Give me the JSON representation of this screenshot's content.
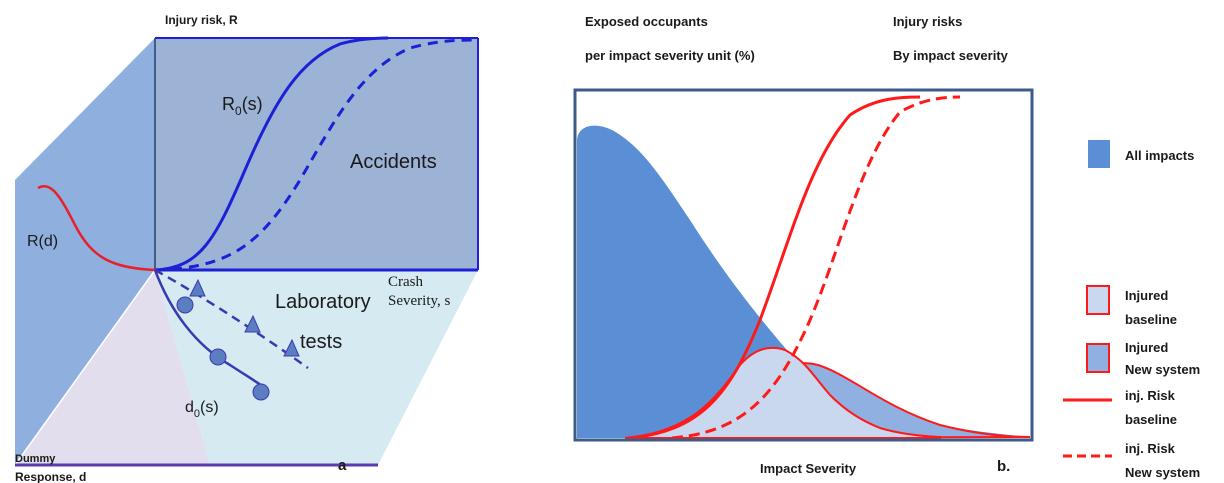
{
  "panel_a": {
    "y_axis_label": "Injury risk, R",
    "response_label_line1": "Dummy",
    "response_label_line2": "Response, d",
    "x_axis_label_line1": "Crash",
    "x_axis_label_line2": "Severity, s",
    "risk_curve_label": "R",
    "risk_curve_sub": "0",
    "risk_curve_arg": "(s)",
    "accidents_label": "Accidents",
    "rd_label": "R(d)",
    "lab_tests_line1": "Laboratory",
    "lab_tests_line2": "tests",
    "d_curve_label": "d",
    "d_curve_sub": "0",
    "d_curve_arg": "(s)",
    "panel_letter": "a",
    "colors": {
      "back_wall": "#9cb3d6",
      "left_wall": "#8fb0de",
      "floor_left": "#e2deed",
      "floor_right": "#d6eaf1",
      "curve_red": "#e8202a",
      "curve_blue": "#1f1fd6",
      "test_blue": "#3a3ab0",
      "markers": "#5b7ec2"
    }
  },
  "panel_b": {
    "left_header_line1": "Exposed occupants",
    "left_header_line2": "per impact severity unit (%)",
    "right_header_line1": "Injury risks",
    "right_header_line2": "By impact severity",
    "x_axis_label": "Impact Severity",
    "panel_letter": "b.",
    "legend": [
      {
        "line1": "All impacts",
        "line2": ""
      },
      {
        "line1": "Injured",
        "line2": "baseline"
      },
      {
        "line1": "Injured",
        "line2": "New system"
      },
      {
        "line1": "inj. Risk",
        "line2": "baseline"
      },
      {
        "line1": "inj. Risk",
        "line2": "New system"
      }
    ],
    "colors": {
      "all_impacts": "#5a8fd6",
      "injured_baseline": "#c9d8ef",
      "injured_new": "#8fb0e0",
      "risk_red": "#ff1a1a",
      "frame": "#3c5a8a"
    }
  }
}
